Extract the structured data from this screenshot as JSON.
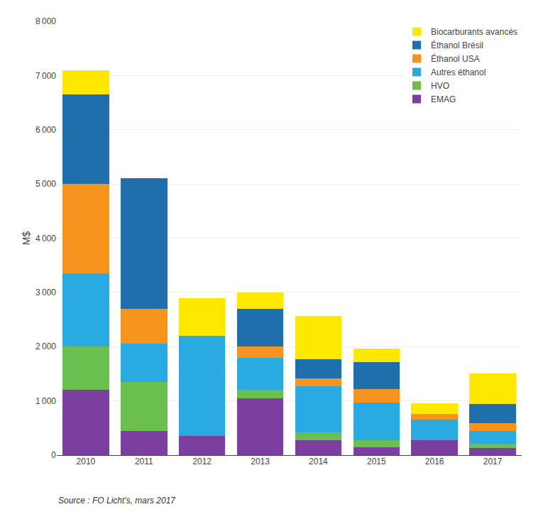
{
  "chart_data": {
    "type": "bar",
    "stacked": true,
    "categories": [
      "2010",
      "2011",
      "2012",
      "2013",
      "2014",
      "2015",
      "2016",
      "2017"
    ],
    "series": [
      {
        "name": "EMAG",
        "color": "#7B3FA0",
        "values": [
          1200,
          450,
          350,
          1050,
          270,
          150,
          280,
          130
        ]
      },
      {
        "name": "HVO",
        "color": "#6BBF4E",
        "values": [
          800,
          900,
          0,
          150,
          150,
          120,
          0,
          80
        ]
      },
      {
        "name": "Autres éthanol",
        "color": "#29ABE2",
        "values": [
          1350,
          700,
          1850,
          600,
          850,
          700,
          380,
          230
        ]
      },
      {
        "name": "Éthanol USA",
        "color": "#F7941D",
        "values": [
          1650,
          650,
          0,
          200,
          150,
          250,
          100,
          150
        ]
      },
      {
        "name": "Éthanol Brésil",
        "color": "#1F6FAD",
        "values": [
          1650,
          2400,
          0,
          700,
          350,
          500,
          0,
          350
        ]
      },
      {
        "name": "Biocarburants avancés",
        "color": "#FFE800",
        "values": [
          450,
          0,
          700,
          300,
          800,
          250,
          200,
          560
        ]
      }
    ],
    "ylabel": "M$",
    "ylim": [
      0,
      8000
    ],
    "yticks": [
      0,
      {
        "value": 1000,
        "label": "1 000"
      },
      {
        "value": 2000,
        "label": "2 000"
      },
      {
        "value": 3000,
        "label": "3 000"
      },
      {
        "value": 4000,
        "label": "4 000"
      },
      {
        "value": 5000,
        "label": "5 000"
      },
      {
        "value": 6000,
        "label": "6 000"
      },
      {
        "value": 7000,
        "label": "7 000"
      },
      {
        "value": 8000,
        "label": "8 000"
      }
    ],
    "grid": true,
    "legend": "upper right",
    "annotations": [
      "Source : FO Licht's, mars 2017"
    ]
  }
}
